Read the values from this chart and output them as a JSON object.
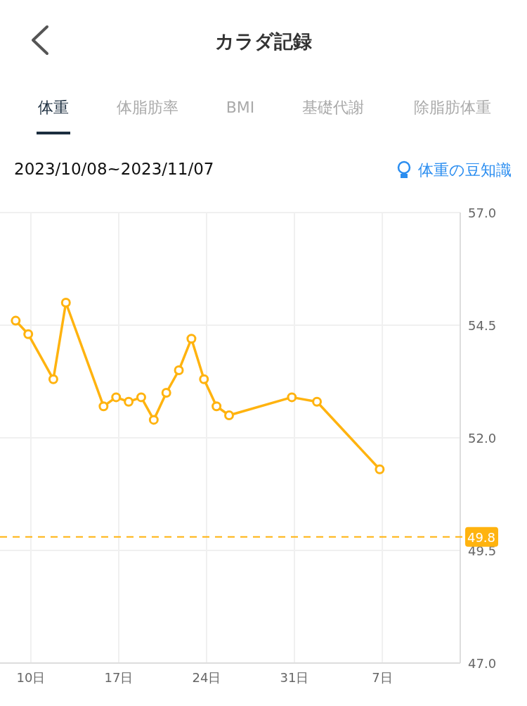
{
  "chart_data": {
    "type": "line",
    "title": "カラダ記録",
    "subtitle": "2023/10/08~2023/11/07",
    "annotations": [
      "体重",
      "体脂肪率",
      "BMI",
      "基礎代謝",
      "除脂肪体重",
      "体重の豆知識"
    ],
    "x": [
      "2023-10-08T19:00",
      "2023-10-09T19:00",
      "2023-10-11T19:00",
      "2023-10-12T19:00",
      "2023-10-15T19:00",
      "2023-10-16T19:00",
      "2023-10-17T19:00",
      "2023-10-18T19:00",
      "2023-10-19T19:00",
      "2023-10-20T19:00",
      "2023-10-21T19:00",
      "2023-10-22T19:00",
      "2023-10-23T19:00",
      "2023-10-24T19:00",
      "2023-10-25T19:00",
      "2023-10-30T19:00",
      "2023-11-01T19:00",
      "2023-11-06T19:00"
    ],
    "series": [
      {
        "color": "#ffb30f",
        "values": [
          54.6,
          54.3,
          53.3,
          55.0,
          52.7,
          52.9,
          52.8,
          52.9,
          52.4,
          53.0,
          53.5,
          54.2,
          53.3,
          52.7,
          52.5,
          52.9,
          52.8,
          51.3
        ]
      }
    ],
    "xlim": [
      "2023-10-07T13:00",
      "2023-11-13T05:00"
    ],
    "xticks": [
      {
        "value": "2023-10-10",
        "label": "10日"
      },
      {
        "value": "2023-10-17",
        "label": "17日"
      },
      {
        "value": "2023-10-24",
        "label": "24日"
      },
      {
        "value": "2023-10-31",
        "label": "31日"
      },
      {
        "value": "2023-11-07",
        "label": "7日"
      }
    ],
    "ylim": [
      47,
      57
    ],
    "yticks": [
      {
        "value": 47,
        "label": "47.0"
      },
      {
        "value": 49.5,
        "label": "49.5"
      },
      {
        "value": 52,
        "label": "52.0"
      },
      {
        "value": 54.5,
        "label": "54.5"
      },
      {
        "value": 57,
        "label": "57.0"
      }
    ],
    "ref_lines": [
      {
        "axis": "y",
        "value": 49.8,
        "label": "49.8",
        "color": "#ffb30f",
        "line_style": "dashed"
      }
    ],
    "grid": true,
    "marker": "circle",
    "line_style": "solid"
  }
}
